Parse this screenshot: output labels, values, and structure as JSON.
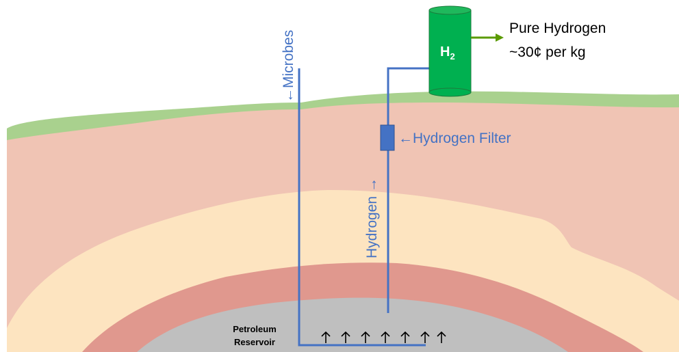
{
  "labels": {
    "microbes": "←Microbes",
    "hydrogen_up": "Hydrogen →",
    "hydrogen_filter": "←Hydrogen Filter",
    "h2": {
      "main": "H",
      "subscript": "2"
    },
    "output": {
      "line1": "Pure Hydrogen",
      "line2": "~30¢ per kg"
    },
    "reservoir": {
      "line1": "Petroleum",
      "line2": "Reservoir"
    }
  }
}
